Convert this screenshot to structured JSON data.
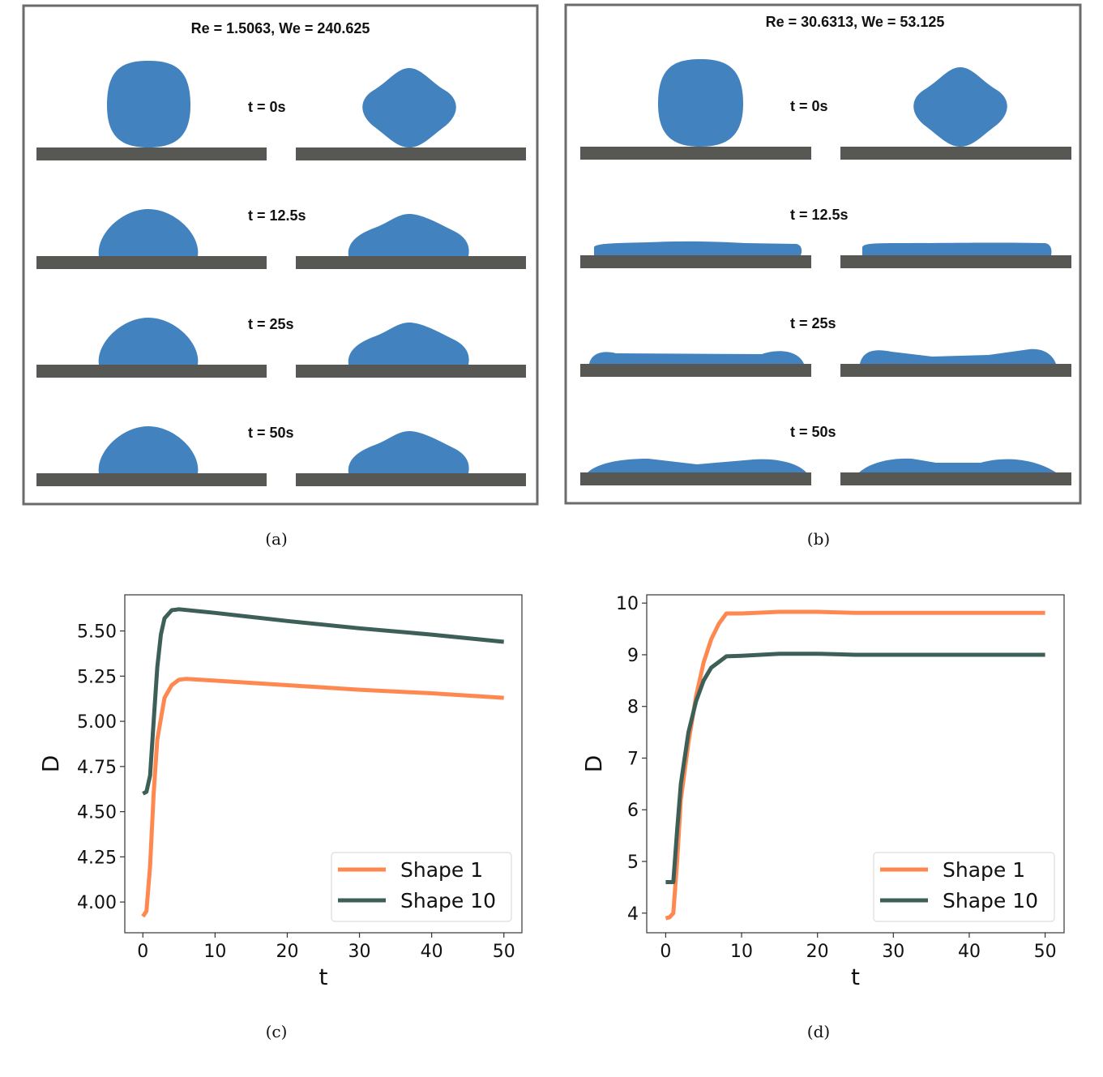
{
  "colors": {
    "droplet": "#4182bf",
    "substrate": "#575754",
    "frame": "#6b6b6b",
    "shape1": "#fe8850",
    "shape10": "#3e5f58"
  },
  "panel_a": {
    "title": "Re = 1.5063, We = 240.625",
    "times": [
      "t = 0s",
      "t = 12.5s",
      "t = 25s",
      "t = 50s"
    ],
    "caption": "(a)"
  },
  "panel_b": {
    "title": "Re = 30.6313, We = 53.125",
    "times": [
      "t = 0s",
      "t = 12.5s",
      "t = 25s",
      "t = 50s"
    ],
    "caption": "(b)"
  },
  "chart_data": [
    {
      "type": "line",
      "caption": "(c)",
      "xlabel": "t",
      "ylabel": "D",
      "xlim": [
        -2.5,
        52.5
      ],
      "ylim": [
        3.83,
        5.7
      ],
      "xticks": [
        0,
        10,
        20,
        30,
        40,
        50
      ],
      "yticks": [
        4.0,
        4.25,
        4.5,
        4.75,
        5.0,
        5.25,
        5.5
      ],
      "ytick_labels": [
        "4.00",
        "4.25",
        "4.50",
        "4.75",
        "5.00",
        "5.25",
        "5.50"
      ],
      "legend": "lower-right",
      "grid": false,
      "series": [
        {
          "name": "Shape 1",
          "color": "#fe8850",
          "x": [
            0,
            0.5,
            1,
            1.5,
            2,
            3,
            4,
            5,
            6,
            10,
            20,
            30,
            40,
            50
          ],
          "y": [
            3.92,
            3.95,
            4.2,
            4.6,
            4.9,
            5.13,
            5.2,
            5.23,
            5.235,
            5.225,
            5.2,
            5.175,
            5.155,
            5.13
          ]
        },
        {
          "name": "Shape 10",
          "color": "#3e5f58",
          "x": [
            0,
            0.5,
            1,
            1.5,
            2,
            2.5,
            3,
            4,
            5,
            10,
            20,
            30,
            40,
            50
          ],
          "y": [
            4.6,
            4.61,
            4.7,
            5.0,
            5.3,
            5.48,
            5.57,
            5.615,
            5.62,
            5.6,
            5.555,
            5.515,
            5.48,
            5.44
          ]
        }
      ]
    },
    {
      "type": "line",
      "caption": "(d)",
      "xlabel": "t",
      "ylabel": "D",
      "xlim": [
        -2.5,
        52.5
      ],
      "ylim": [
        3.62,
        10.16
      ],
      "xticks": [
        0,
        10,
        20,
        30,
        40,
        50
      ],
      "yticks": [
        4,
        5,
        6,
        7,
        8,
        9,
        10
      ],
      "ytick_labels": [
        "4",
        "5",
        "6",
        "7",
        "8",
        "9",
        "10"
      ],
      "legend": "lower-right",
      "grid": false,
      "series": [
        {
          "name": "Shape 1",
          "color": "#fe8850",
          "x": [
            0,
            0.5,
            1,
            1.5,
            2,
            3,
            4,
            5,
            6,
            7,
            8,
            10,
            15,
            20,
            25,
            30,
            50
          ],
          "y": [
            3.9,
            3.92,
            4.0,
            5.0,
            6.2,
            7.3,
            8.2,
            8.85,
            9.3,
            9.6,
            9.8,
            9.8,
            9.83,
            9.83,
            9.81,
            9.81,
            9.81
          ]
        },
        {
          "name": "Shape 10",
          "color": "#3e5f58",
          "x": [
            0,
            1,
            1.5,
            2,
            3,
            4,
            5,
            6,
            8,
            10,
            15,
            20,
            25,
            30,
            50
          ],
          "y": [
            4.6,
            4.6,
            5.6,
            6.5,
            7.5,
            8.1,
            8.5,
            8.75,
            8.97,
            8.98,
            9.02,
            9.02,
            9.0,
            9.0,
            9.0
          ]
        }
      ]
    }
  ]
}
